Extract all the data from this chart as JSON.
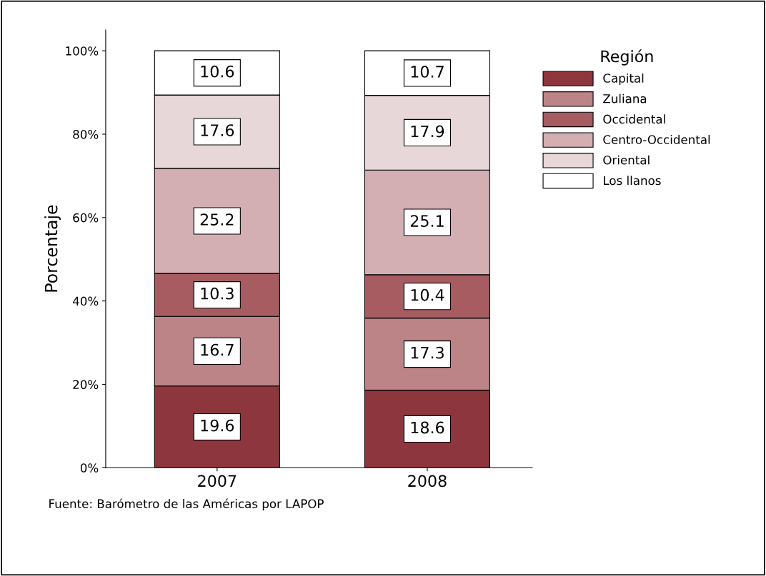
{
  "chart_data": {
    "type": "bar",
    "stacked": true,
    "ylabel": "Porcentaje",
    "legend_title": "Región",
    "legend": "top right",
    "categories": [
      "2007",
      "2008"
    ],
    "series": [
      {
        "name": "Capital",
        "color": "#8e363e",
        "values": [
          19.6,
          18.6
        ]
      },
      {
        "name": "Zuliana",
        "color": "#bc8486",
        "values": [
          16.7,
          17.3
        ]
      },
      {
        "name": "Occidental",
        "color": "#a65c60",
        "values": [
          10.3,
          10.4
        ]
      },
      {
        "name": "Centro-Occidental",
        "color": "#d3afb3",
        "values": [
          25.2,
          25.1
        ]
      },
      {
        "name": "Oriental",
        "color": "#e8d7d8",
        "values": [
          17.6,
          17.9
        ]
      },
      {
        "name": "Los llanos",
        "color": "#ffffff",
        "values": [
          10.6,
          10.7
        ]
      }
    ],
    "ylim": [
      0,
      105
    ],
    "yticks": [
      {
        "value": 0,
        "label": "0%"
      },
      {
        "value": 20,
        "label": "20%"
      },
      {
        "value": 40,
        "label": "40%"
      },
      {
        "value": 60,
        "label": "60%"
      },
      {
        "value": 80,
        "label": "80%"
      },
      {
        "value": 100,
        "label": "100%"
      }
    ],
    "data_labels": true,
    "grid": false,
    "annotations": [
      "Fuente: Barómetro de las Américas por LAPOP"
    ]
  }
}
